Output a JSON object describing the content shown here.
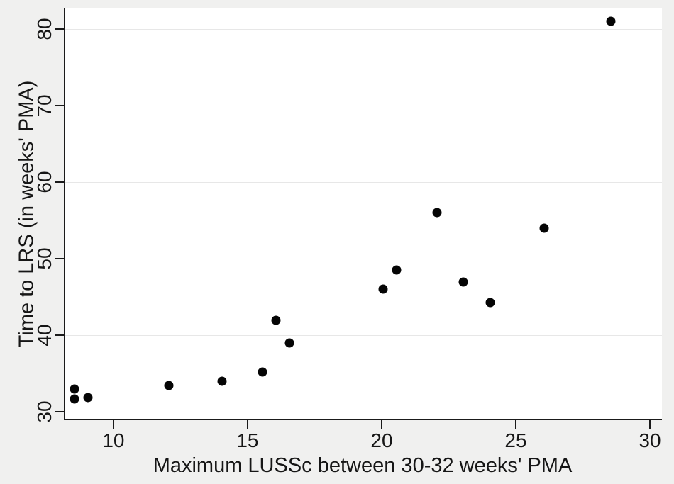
{
  "figure": {
    "background_color": "#f0f0ef",
    "plot_background_color": "#ffffff",
    "gridline_color": "#e7e7e7",
    "axis_color": "#1a1a1a",
    "text_color": "#161616",
    "point_color": "#050505"
  },
  "chart_data": {
    "type": "scatter",
    "title": "",
    "xlabel": "Maximum LUSSc between 30-32 weeks' PMA",
    "ylabel": "Time to LRS (in weeks' PMA)",
    "x_ticks": [
      10,
      15,
      20,
      25,
      30
    ],
    "y_ticks": [
      30,
      40,
      50,
      60,
      70,
      80
    ],
    "xlim": [
      8.15,
      30.45
    ],
    "ylim": [
      28.9,
      82.8
    ],
    "grid": "horizontal-only",
    "legend": "none",
    "points": [
      {
        "x": 8.5,
        "y": 33.0
      },
      {
        "x": 8.5,
        "y": 31.7
      },
      {
        "x": 9.0,
        "y": 31.9
      },
      {
        "x": 12.0,
        "y": 33.4
      },
      {
        "x": 14.0,
        "y": 34.0
      },
      {
        "x": 15.5,
        "y": 35.2
      },
      {
        "x": 16.0,
        "y": 42.0
      },
      {
        "x": 16.5,
        "y": 39.0
      },
      {
        "x": 20.0,
        "y": 46.0
      },
      {
        "x": 20.5,
        "y": 48.5
      },
      {
        "x": 22.0,
        "y": 56.0
      },
      {
        "x": 23.0,
        "y": 47.0
      },
      {
        "x": 24.0,
        "y": 44.3
      },
      {
        "x": 26.0,
        "y": 54.0
      },
      {
        "x": 28.5,
        "y": 81.0
      }
    ]
  }
}
